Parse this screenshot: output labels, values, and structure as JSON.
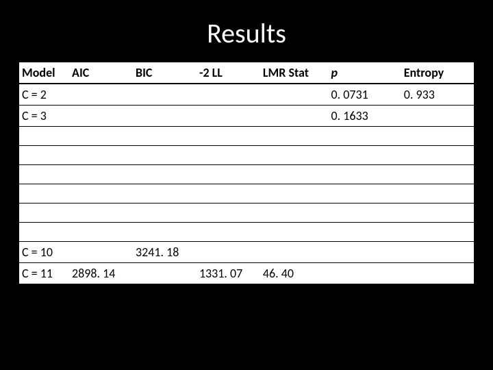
{
  "title": "Results",
  "table": {
    "type": "table",
    "background_color": "#ffffff",
    "header_bg": "#ffffff",
    "text_color": "#000000",
    "header_fontsize": 18,
    "cell_fontsize": 18,
    "border_color": "#000000",
    "columns": [
      {
        "label": "Model",
        "italic": false,
        "width_pct": 11
      },
      {
        "label": "AIC",
        "italic": false,
        "width_pct": 14
      },
      {
        "label": "BIC",
        "italic": false,
        "width_pct": 14
      },
      {
        "label": "-2 LL",
        "italic": false,
        "width_pct": 14
      },
      {
        "label": "LMR Stat",
        "italic": false,
        "width_pct": 15
      },
      {
        "label": "p",
        "italic": true,
        "width_pct": 16
      },
      {
        "label": "Entropy",
        "italic": false,
        "width_pct": 16
      }
    ],
    "rows": [
      {
        "model": "C = 2",
        "aic": "",
        "bic": "",
        "neg2ll": "",
        "lmr": "",
        "p": "0. 0731",
        "entropy": "0. 933"
      },
      {
        "model": "C = 3",
        "aic": "",
        "bic": "",
        "neg2ll": "",
        "lmr": "",
        "p": "0. 1633",
        "entropy": ""
      },
      {
        "model": "",
        "aic": "",
        "bic": "",
        "neg2ll": "",
        "lmr": "",
        "p": "",
        "entropy": ""
      },
      {
        "model": "",
        "aic": "",
        "bic": "",
        "neg2ll": "",
        "lmr": "",
        "p": "",
        "entropy": ""
      },
      {
        "model": "",
        "aic": "",
        "bic": "",
        "neg2ll": "",
        "lmr": "",
        "p": "",
        "entropy": ""
      },
      {
        "model": "",
        "aic": "",
        "bic": "",
        "neg2ll": "",
        "lmr": "",
        "p": "",
        "entropy": ""
      },
      {
        "model": "",
        "aic": "",
        "bic": "",
        "neg2ll": "",
        "lmr": "",
        "p": "",
        "entropy": ""
      },
      {
        "model": "",
        "aic": "",
        "bic": "",
        "neg2ll": "",
        "lmr": "",
        "p": "",
        "entropy": ""
      },
      {
        "model": "C = 10",
        "aic": "",
        "bic": "3241. 18",
        "neg2ll": "",
        "lmr": "",
        "p": "",
        "entropy": ""
      },
      {
        "model": "C = 11",
        "aic": "2898. 14",
        "bic": "",
        "neg2ll": "1331. 07",
        "lmr": "46. 40",
        "p": "",
        "entropy": ""
      }
    ]
  },
  "slide_bg": "#000000",
  "title_color": "#ffffff",
  "title_fontsize": 40
}
